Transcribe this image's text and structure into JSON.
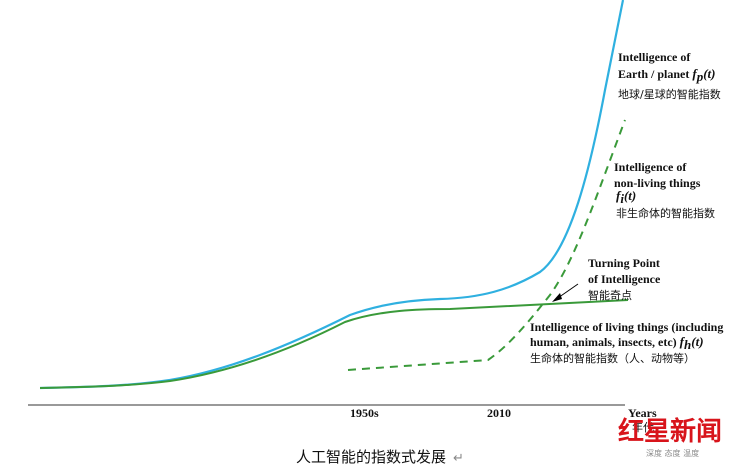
{
  "curves": {
    "earth": {
      "line1": "Intelligence of",
      "line2": "Earth / planet",
      "f": "f",
      "sub": "p",
      "arg": "(t)",
      "cn": "地球/星球的智能指数"
    },
    "nonliving": {
      "line1": "Intelligence of",
      "line2": "non-living things",
      "f": "f",
      "sub": "i",
      "arg": "(t)",
      "cn": "非生命体的智能指数"
    },
    "turning": {
      "line1": "Turning Point",
      "line2": "of Intelligence",
      "cn": "智能奇点"
    },
    "living": {
      "line1": "Intelligence of living things (including",
      "line2": "human, animals, insects, etc)",
      "f": "f",
      "sub": "h",
      "arg": "(t)",
      "cn": "生命体的智能指数（人、动物等）"
    }
  },
  "axis": {
    "labels": [
      "1950s",
      "2010"
    ],
    "unit": "Years",
    "unit_cn": "年代"
  },
  "caption": "人工智能的指数式发展",
  "watermark": {
    "brand": "红星新闻",
    "slogan": "深度 态度 温度"
  }
}
